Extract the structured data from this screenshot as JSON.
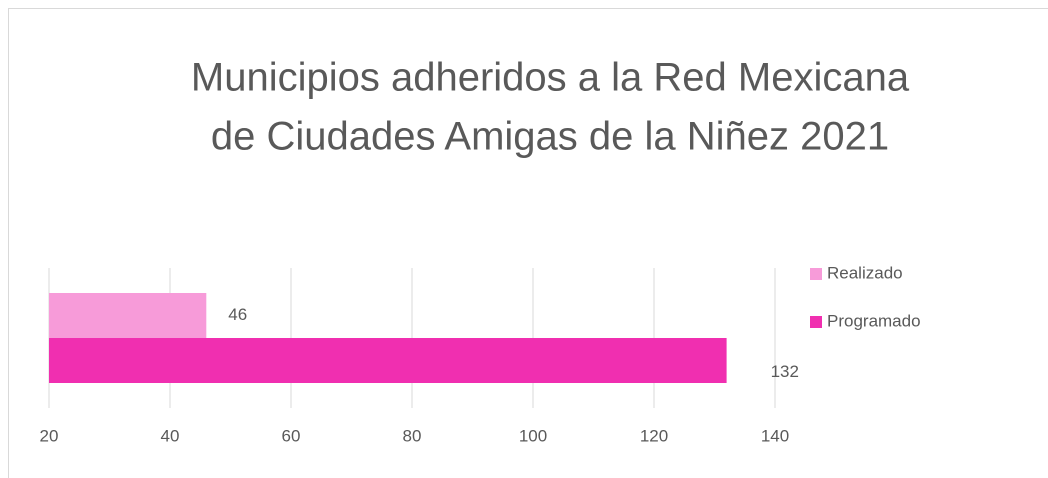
{
  "chart_data": {
    "type": "bar",
    "orientation": "horizontal",
    "title": [
      "Municipios adheridos a la Red Mexicana",
      "de Ciudades Amigas de la Niñez  2021"
    ],
    "categories": [
      null
    ],
    "series": [
      {
        "name": "Realizado",
        "color": "#f79bd9",
        "values": [
          46
        ]
      },
      {
        "name": "Programado",
        "color": "#f02fb0",
        "values": [
          132
        ]
      }
    ],
    "xlim": [
      20,
      140
    ],
    "xticks": [
      20,
      40,
      60,
      80,
      100,
      120,
      140
    ],
    "grid": true,
    "legend": "right"
  }
}
